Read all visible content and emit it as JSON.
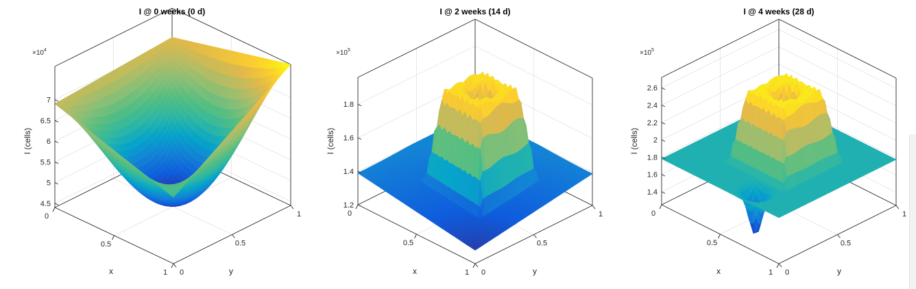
{
  "chart_data": [
    {
      "type": "surface",
      "title": "I @ 0 weeks (0 d)",
      "xlabel": "x",
      "ylabel": "y",
      "zlabel": "I (cells)",
      "z_multiplier": "×10",
      "z_multiplier_exponent": "4",
      "xlim": [
        0,
        1
      ],
      "ylim": [
        0,
        1
      ],
      "zlim": [
        44000,
        78000
      ],
      "x_ticks": [
        "0",
        "0.5",
        "1"
      ],
      "y_ticks": [
        "0",
        "0.5",
        "1"
      ],
      "z_ticks": [
        "4.5",
        "5",
        "5.5",
        "6",
        "6.5",
        "7"
      ],
      "z_tick_values": [
        45000,
        50000,
        55000,
        60000,
        65000,
        70000
      ],
      "clim": [
        45000,
        78000
      ],
      "surface": {
        "shape": "paraboloid",
        "corner_values": {
          "x0y0": 69000,
          "x1y0": 60000,
          "x1y1": 78000,
          "x0y1": 71000
        },
        "min": 45000,
        "min_at": [
          0.5,
          0.5
        ]
      },
      "grid": true
    },
    {
      "type": "surface",
      "title": "I @ 2 weeks (14 d)",
      "xlabel": "x",
      "ylabel": "y",
      "zlabel": "I (cells)",
      "z_multiplier": "×10",
      "z_multiplier_exponent": "5",
      "xlim": [
        0,
        1
      ],
      "ylim": [
        0,
        1
      ],
      "zlim": [
        120000,
        196000
      ],
      "x_ticks": [
        "0",
        "0.5",
        "1"
      ],
      "y_ticks": [
        "0",
        "0.5",
        "1"
      ],
      "z_ticks": [
        "1.2",
        "1.4",
        "1.6",
        "1.8"
      ],
      "z_tick_values": [
        120000,
        140000,
        160000,
        180000
      ],
      "clim": [
        125000,
        195000
      ],
      "surface": {
        "shape": "plateau-ring",
        "baseline": 140000,
        "baseline_min": 128000,
        "plateau": 192000,
        "ring_center": [
          0.55,
          0.5
        ],
        "plateau_half_width": 0.17,
        "inner_radius": 0.08,
        "inner_value": 177000
      },
      "grid": true
    },
    {
      "type": "surface",
      "title": "I @ 4 weeks (28 d)",
      "xlabel": "x",
      "ylabel": "y",
      "zlabel": "I (cells)",
      "z_multiplier": "×10",
      "z_multiplier_exponent": "5",
      "xlim": [
        0,
        1
      ],
      "ylim": [
        0,
        1
      ],
      "zlim": [
        125000,
        272000
      ],
      "x_ticks": [
        "0",
        "0.5",
        "1"
      ],
      "y_ticks": [
        "0",
        "0.5",
        "1"
      ],
      "z_ticks": [
        "1.4",
        "1.6",
        "1.8",
        "2",
        "2.2",
        "2.4",
        "2.6"
      ],
      "z_tick_values": [
        140000,
        160000,
        180000,
        200000,
        220000,
        240000,
        260000
      ],
      "clim": [
        128000,
        265000
      ],
      "surface": {
        "shape": "plateau-ring",
        "baseline": 178000,
        "plateau": 262000,
        "ring_center": [
          0.55,
          0.5
        ],
        "plateau_half_width": 0.17,
        "inner_radius": 0.08,
        "inner_value": 235000,
        "trough": 128000
      },
      "grid": true
    }
  ]
}
